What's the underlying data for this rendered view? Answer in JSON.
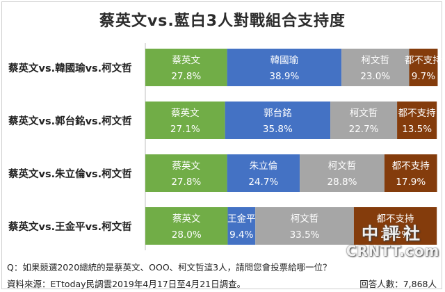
{
  "chart_data": {
    "type": "bar",
    "stacked": true,
    "orientation": "horizontal",
    "title": "蔡英文vs.藍白3人對戰組合支持度",
    "xlim": [
      0,
      100
    ],
    "categories": [
      "蔡英文vs.韓國瑜vs.柯文哲",
      "蔡英文vs.郭台銘vs.柯文哲",
      "蔡英文vs.朱立倫vs.柯文哲",
      "蔡英文vs.王金平vs.柯文哲"
    ],
    "rows": [
      {
        "segments": [
          {
            "label": "蔡英文",
            "value": 27.8,
            "text": "27.8%",
            "color": "#71ad47"
          },
          {
            "label": "韓國瑜",
            "value": 38.9,
            "text": "38.9%",
            "color": "#4472c4"
          },
          {
            "label": "柯文哲",
            "value": 23.0,
            "text": "23.0%",
            "color": "#a6a6a6"
          },
          {
            "label": "都不支持",
            "value": 9.7,
            "text": "9.7%",
            "color": "#843c0c"
          }
        ]
      },
      {
        "segments": [
          {
            "label": "蔡英文",
            "value": 27.1,
            "text": "27.1%",
            "color": "#71ad47"
          },
          {
            "label": "郭台銘",
            "value": 35.8,
            "text": "35.8%",
            "color": "#4472c4"
          },
          {
            "label": "柯文哲",
            "value": 22.7,
            "text": "22.7%",
            "color": "#a6a6a6"
          },
          {
            "label": "都不支持",
            "value": 13.5,
            "text": "13.5%",
            "color": "#843c0c"
          }
        ]
      },
      {
        "segments": [
          {
            "label": "蔡英文",
            "value": 27.8,
            "text": "27.8%",
            "color": "#71ad47"
          },
          {
            "label": "朱立倫",
            "value": 24.7,
            "text": "24.7%",
            "color": "#4472c4"
          },
          {
            "label": "柯文哲",
            "value": 28.8,
            "text": "28.8%",
            "color": "#a6a6a6"
          },
          {
            "label": "都不支持",
            "value": 17.9,
            "text": "17.9%",
            "color": "#843c0c"
          }
        ]
      },
      {
        "segments": [
          {
            "label": "蔡英文",
            "value": 28.0,
            "text": "28.0%",
            "color": "#71ad47"
          },
          {
            "label": "王金平",
            "value": 9.4,
            "text": "9.4%",
            "color": "#4472c4"
          },
          {
            "label": "柯文哲",
            "value": 33.5,
            "text": "33.5%",
            "color": "#a6a6a6"
          },
          {
            "label": "都不支持",
            "value": 28.2,
            "text": "28.2%",
            "color": "#843c0c"
          }
        ]
      }
    ]
  },
  "footer": {
    "question": "Q：如果競選2020總統的是蔡英文、OOO、柯文哲這3人，請問您會投票給哪一位？",
    "source": "資料來源：ETtoday民調雲2019年4月17日至4月21日調查。",
    "respondents": "回答人數：7,868人"
  },
  "watermark": {
    "line1": "中評社",
    "line2": "CRNTT.com"
  }
}
